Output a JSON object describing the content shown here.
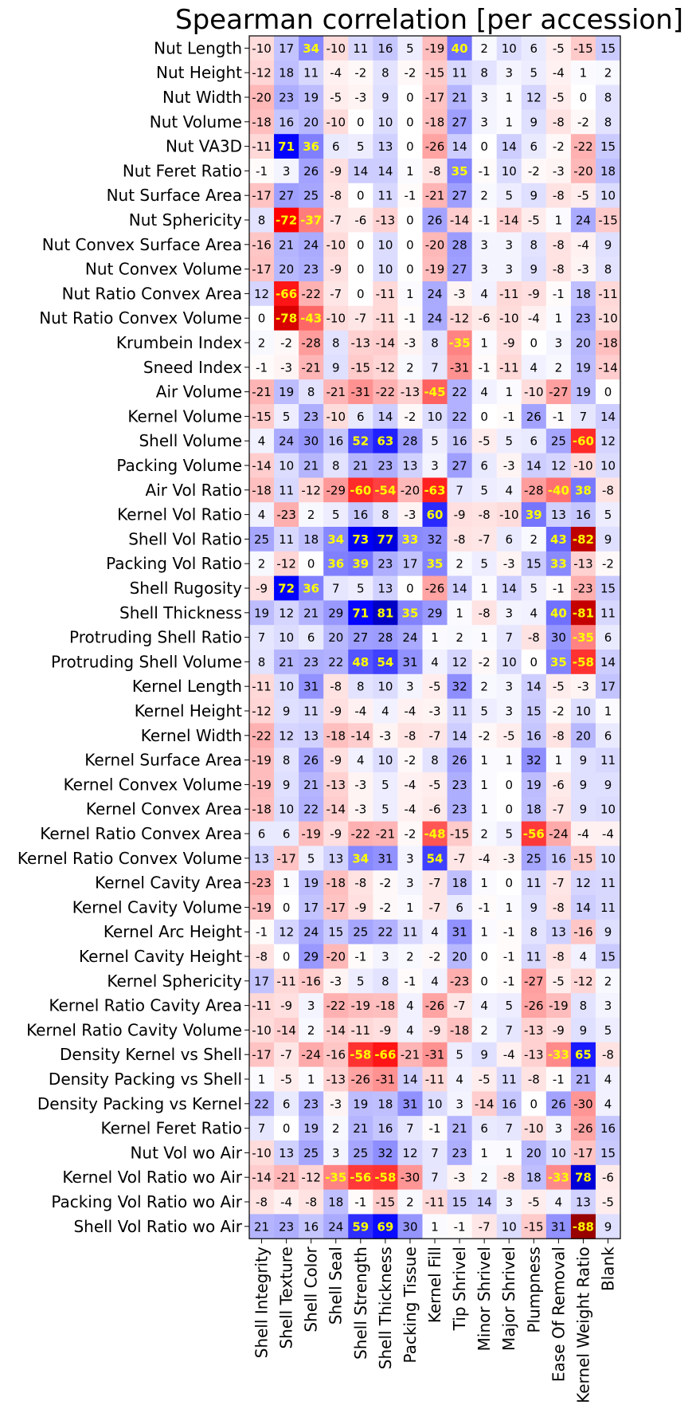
{
  "chart_data": {
    "type": "heatmap",
    "title": "Spearman correlation [per accession]",
    "colormap": "bwr",
    "range": [
      -100,
      100
    ],
    "highlight_threshold": 33,
    "highlight_color": "#ffff00",
    "colors": {
      "positive": "#0000ff",
      "negative": "#ff0000",
      "neutral": "#ffffff",
      "extreme_positive": "#00007f",
      "extreme_negative": "#7f0000"
    },
    "rows": [
      "Nut Length",
      "Nut Height",
      "Nut Width",
      "Nut Volume",
      "Nut VA3D",
      "Nut Feret Ratio",
      "Nut Surface Area",
      "Nut Sphericity",
      "Nut Convex Surface Area",
      "Nut Convex Volume",
      "Nut Ratio Convex Area",
      "Nut Ratio Convex Volume",
      "Krumbein Index",
      "Sneed Index",
      "Air Volume",
      "Kernel Volume",
      "Shell Volume",
      "Packing Volume",
      "Air Vol Ratio",
      "Kernel Vol Ratio",
      "Shell Vol Ratio",
      "Packing Vol Ratio",
      "Shell Rugosity",
      "Shell Thickness",
      "Protruding Shell Ratio",
      "Protruding Shell Volume",
      "Kernel Length",
      "Kernel Height",
      "Kernel Width",
      "Kernel Surface Area",
      "Kernel Convex Volume",
      "Kernel Convex Area",
      "Kernel Ratio Convex Area",
      "Kernel Ratio Convex Volume",
      "Kernel Cavity Area",
      "Kernel Cavity Volume",
      "Kernel Arc Height",
      "Kernel Cavity Height",
      "Kernel Sphericity",
      "Kernel Ratio Cavity Area",
      "Kernel Ratio Cavity Volume",
      "Density Kernel vs Shell",
      "Density Packing vs Shell",
      "Density Packing vs Kernel",
      "Kernel Feret Ratio",
      "Nut Vol wo Air",
      "Kernel Vol Ratio wo Air",
      "Packing Vol Ratio wo Air",
      "Shell Vol Ratio wo Air"
    ],
    "columns": [
      "Shell Integrity",
      "Shell Texture",
      "Shell Color",
      "Shell Seal",
      "Shell Strength",
      "Shell Thickness",
      "Packing Tissue",
      "Kernel Fill",
      "Tip Shrivel",
      "Minor Shrivel",
      "Major Shrivel",
      "Plumpness",
      "Ease Of Removal",
      "Kernel Weight Ratio",
      "Blank"
    ],
    "values": [
      [
        -10,
        17,
        34,
        -10,
        11,
        16,
        5,
        -19,
        40,
        2,
        10,
        6,
        -5,
        -15,
        15
      ],
      [
        -12,
        18,
        11,
        -4,
        -2,
        8,
        -2,
        -15,
        11,
        8,
        3,
        5,
        -4,
        1,
        2
      ],
      [
        -20,
        23,
        19,
        -5,
        -3,
        9,
        0,
        -17,
        21,
        3,
        1,
        12,
        -5,
        0,
        8
      ],
      [
        -18,
        16,
        20,
        -10,
        0,
        10,
        0,
        -18,
        27,
        3,
        1,
        9,
        -8,
        -2,
        8
      ],
      [
        -11,
        71,
        36,
        6,
        5,
        13,
        0,
        -26,
        14,
        0,
        14,
        6,
        -2,
        -22,
        15
      ],
      [
        -1,
        3,
        26,
        -9,
        14,
        14,
        1,
        -8,
        35,
        -1,
        10,
        -2,
        -3,
        -20,
        18
      ],
      [
        -17,
        27,
        25,
        -8,
        0,
        11,
        -1,
        -21,
        27,
        2,
        5,
        9,
        -8,
        -5,
        10
      ],
      [
        8,
        -72,
        -37,
        -7,
        -6,
        -13,
        0,
        26,
        -14,
        -1,
        -14,
        -5,
        1,
        24,
        -15
      ],
      [
        -16,
        21,
        24,
        -10,
        0,
        10,
        0,
        -20,
        28,
        3,
        3,
        8,
        -8,
        -4,
        9
      ],
      [
        -17,
        20,
        23,
        -9,
        0,
        10,
        0,
        -19,
        27,
        3,
        3,
        9,
        -8,
        -3,
        8
      ],
      [
        12,
        -66,
        -22,
        -7,
        0,
        -11,
        1,
        24,
        -3,
        4,
        -11,
        -9,
        -1,
        18,
        -11
      ],
      [
        0,
        -78,
        -43,
        -10,
        -7,
        -11,
        -1,
        24,
        -12,
        -6,
        -10,
        -4,
        1,
        23,
        -10
      ],
      [
        2,
        -2,
        -28,
        8,
        -13,
        -14,
        -3,
        8,
        -35,
        1,
        -9,
        0,
        3,
        20,
        -18
      ],
      [
        -1,
        -3,
        -21,
        9,
        -15,
        -12,
        2,
        7,
        -31,
        -1,
        -11,
        4,
        2,
        19,
        -14
      ],
      [
        -21,
        19,
        8,
        -21,
        -31,
        -22,
        -13,
        -45,
        22,
        4,
        1,
        -10,
        -27,
        19,
        0
      ],
      [
        -15,
        5,
        23,
        -10,
        6,
        14,
        -2,
        10,
        22,
        0,
        -1,
        26,
        -1,
        7,
        14
      ],
      [
        4,
        24,
        30,
        16,
        52,
        63,
        28,
        5,
        16,
        -5,
        5,
        6,
        25,
        -60,
        12
      ],
      [
        -14,
        10,
        21,
        8,
        21,
        23,
        13,
        3,
        27,
        6,
        -3,
        14,
        12,
        -10,
        10
      ],
      [
        -18,
        11,
        -12,
        -29,
        -60,
        -54,
        -20,
        -63,
        7,
        5,
        4,
        -28,
        -40,
        38,
        -8
      ],
      [
        4,
        -23,
        2,
        5,
        16,
        8,
        -3,
        60,
        -9,
        -8,
        -10,
        39,
        13,
        16,
        5
      ],
      [
        25,
        11,
        18,
        34,
        73,
        77,
        33,
        32,
        -8,
        -7,
        6,
        2,
        43,
        -82,
        9
      ],
      [
        2,
        -12,
        0,
        36,
        39,
        23,
        17,
        35,
        2,
        5,
        -3,
        15,
        33,
        -13,
        -2
      ],
      [
        -9,
        72,
        36,
        7,
        5,
        13,
        0,
        -26,
        14,
        1,
        14,
        5,
        -1,
        -23,
        15
      ],
      [
        19,
        12,
        21,
        29,
        71,
        81,
        35,
        29,
        1,
        -8,
        3,
        4,
        40,
        -81,
        11
      ],
      [
        7,
        10,
        6,
        20,
        27,
        28,
        24,
        1,
        2,
        1,
        7,
        -8,
        30,
        -35,
        6
      ],
      [
        8,
        21,
        23,
        22,
        48,
        54,
        31,
        4,
        12,
        -2,
        10,
        0,
        35,
        -58,
        14
      ],
      [
        -11,
        10,
        31,
        -8,
        8,
        10,
        3,
        -5,
        32,
        2,
        3,
        14,
        -5,
        -3,
        17
      ],
      [
        -12,
        9,
        11,
        -9,
        -4,
        4,
        -4,
        -3,
        11,
        5,
        3,
        15,
        -2,
        10,
        1
      ],
      [
        -22,
        12,
        13,
        -18,
        -14,
        -3,
        -8,
        -7,
        14,
        -2,
        -5,
        16,
        -8,
        20,
        6
      ],
      [
        -19,
        8,
        26,
        -9,
        4,
        10,
        -2,
        8,
        26,
        1,
        1,
        32,
        1,
        9,
        11
      ],
      [
        -19,
        9,
        21,
        -13,
        -3,
        5,
        -4,
        -5,
        23,
        1,
        0,
        19,
        -6,
        9,
        9
      ],
      [
        -18,
        10,
        22,
        -14,
        -3,
        5,
        -4,
        -6,
        23,
        1,
        0,
        18,
        -7,
        9,
        10
      ],
      [
        6,
        6,
        -19,
        -9,
        -22,
        -21,
        -2,
        -48,
        -15,
        2,
        5,
        -56,
        -24,
        -4,
        -4
      ],
      [
        13,
        -17,
        5,
        13,
        34,
        31,
        3,
        54,
        -7,
        -4,
        -3,
        25,
        16,
        -15,
        10
      ],
      [
        -23,
        1,
        19,
        -18,
        -8,
        -2,
        3,
        -7,
        18,
        1,
        0,
        11,
        -7,
        12,
        11
      ],
      [
        -19,
        0,
        17,
        -17,
        -9,
        -2,
        1,
        -7,
        6,
        -1,
        1,
        9,
        -8,
        14,
        11
      ],
      [
        -1,
        12,
        24,
        15,
        25,
        22,
        11,
        4,
        31,
        1,
        -1,
        8,
        13,
        -16,
        9
      ],
      [
        -8,
        0,
        29,
        -20,
        -1,
        3,
        2,
        -2,
        20,
        0,
        -1,
        11,
        -8,
        4,
        15
      ],
      [
        17,
        -11,
        -16,
        -3,
        5,
        8,
        -1,
        4,
        -23,
        0,
        -1,
        -27,
        -5,
        -12,
        2
      ],
      [
        -11,
        -9,
        3,
        -22,
        -19,
        -18,
        4,
        -26,
        -7,
        4,
        5,
        -26,
        -19,
        8,
        3
      ],
      [
        -10,
        -14,
        2,
        -14,
        -11,
        -9,
        4,
        -9,
        -18,
        2,
        7,
        -13,
        -9,
        9,
        5
      ],
      [
        -17,
        -7,
        -24,
        -16,
        -58,
        -66,
        -21,
        -31,
        5,
        9,
        -4,
        -13,
        -33,
        65,
        -8
      ],
      [
        1,
        -5,
        1,
        -13,
        -26,
        -31,
        14,
        -11,
        4,
        -5,
        11,
        -8,
        -1,
        21,
        4
      ],
      [
        22,
        6,
        23,
        -3,
        19,
        18,
        31,
        10,
        3,
        -14,
        16,
        0,
        26,
        -30,
        4
      ],
      [
        7,
        0,
        19,
        2,
        21,
        16,
        7,
        -1,
        21,
        6,
        7,
        -10,
        3,
        -26,
        16
      ],
      [
        -10,
        13,
        25,
        3,
        25,
        32,
        12,
        7,
        23,
        1,
        1,
        20,
        10,
        -17,
        15
      ],
      [
        -14,
        -21,
        -12,
        -35,
        -56,
        -58,
        -30,
        7,
        -3,
        2,
        -8,
        18,
        -33,
        78,
        -6
      ],
      [
        -8,
        -4,
        -8,
        18,
        -1,
        -15,
        2,
        -11,
        15,
        14,
        3,
        -5,
        4,
        13,
        -5
      ],
      [
        21,
        23,
        16,
        24,
        59,
        69,
        30,
        1,
        -1,
        -7,
        10,
        -15,
        31,
        -88,
        9
      ]
    ]
  }
}
